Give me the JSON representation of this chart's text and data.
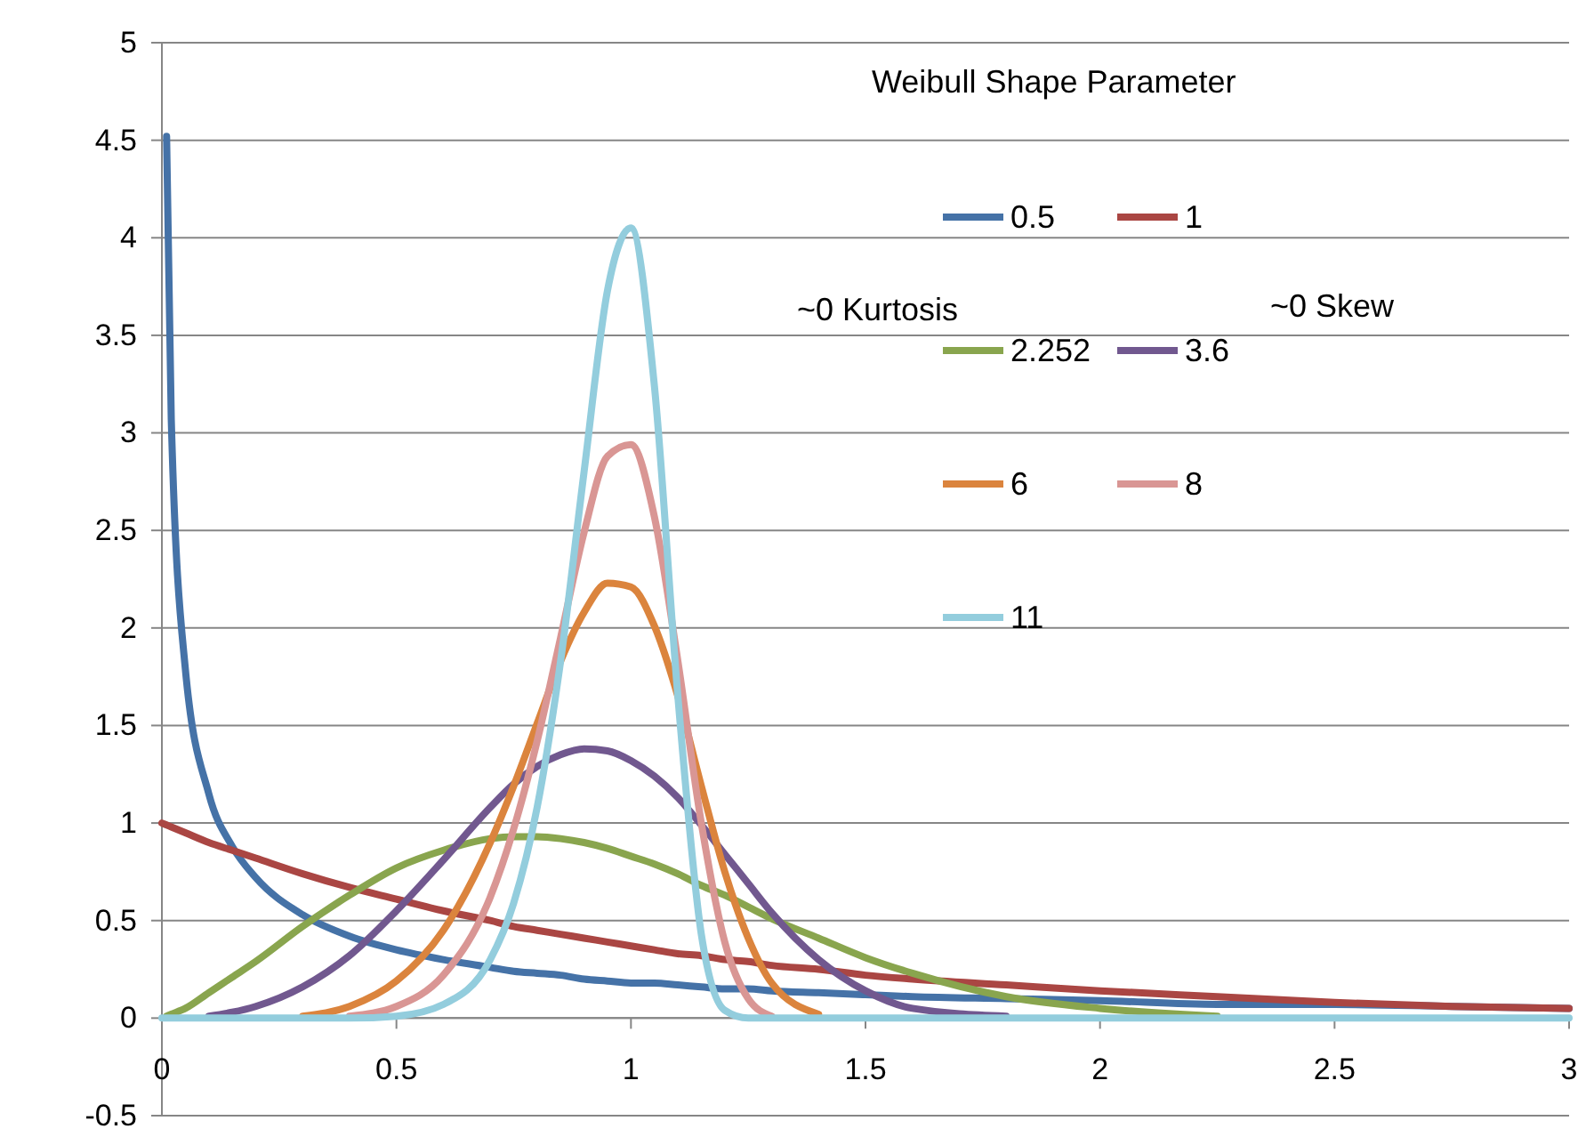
{
  "chart_data": {
    "type": "line",
    "legend_title": "Weibull Shape Parameter",
    "annotations": [
      "~0 Kurtosis",
      "~0 Skew"
    ],
    "x": [
      0,
      0.01,
      0.02,
      0.05,
      0.1,
      0.15,
      0.2,
      0.3,
      0.4,
      0.5,
      0.6,
      0.7,
      0.75,
      0.8,
      0.85,
      0.9,
      0.95,
      1,
      1.05,
      1.1,
      1.15,
      1.2,
      1.25,
      1.3,
      1.4,
      1.5,
      1.6,
      1.8,
      2,
      2.25,
      2.5,
      2.75,
      3
    ],
    "xlim": [
      0,
      3
    ],
    "xticks": [
      0,
      0.5,
      1,
      1.5,
      2,
      2.5,
      3
    ],
    "ylim": [
      -0.5,
      5
    ],
    "yticks": [
      -0.5,
      0,
      0.5,
      1,
      1.5,
      2,
      2.5,
      3,
      3.5,
      4,
      4.5,
      5
    ],
    "grid": "y",
    "legend": "top right",
    "line_style": "solid",
    "marker": "none",
    "series": [
      {
        "name": "0.5",
        "color": "#4572a7",
        "values": [
          null,
          4.52,
          3.07,
          1.79,
          1.15,
          0.88,
          0.72,
          0.53,
          0.42,
          0.35,
          0.3,
          0.26,
          0.24,
          0.23,
          0.22,
          0.2,
          0.19,
          0.18,
          0.18,
          0.17,
          0.16,
          0.15,
          0.15,
          0.14,
          0.13,
          0.12,
          0.11,
          0.1,
          0.09,
          0.07,
          0.07,
          0.06,
          0.05
        ]
      },
      {
        "name": "1",
        "color": "#aa4643",
        "values": [
          1,
          0.99,
          0.98,
          0.95,
          0.9,
          0.86,
          0.82,
          0.74,
          0.67,
          0.61,
          0.55,
          0.5,
          0.47,
          0.45,
          0.43,
          0.41,
          0.39,
          0.37,
          0.35,
          0.33,
          0.32,
          0.3,
          0.29,
          0.27,
          0.25,
          0.22,
          0.2,
          0.17,
          0.14,
          0.11,
          0.08,
          0.06,
          0.05
        ]
      },
      {
        "name": "2.252",
        "color": "#89a54e",
        "values": [
          null,
          0.01,
          0.02,
          0.05,
          0.13,
          0.21,
          0.29,
          0.47,
          0.63,
          0.77,
          0.86,
          0.92,
          0.93,
          0.93,
          0.92,
          0.9,
          0.87,
          0.83,
          0.79,
          0.74,
          0.68,
          0.63,
          0.57,
          0.51,
          0.41,
          0.31,
          0.23,
          0.11,
          0.05,
          0.01,
          null,
          null,
          null
        ]
      },
      {
        "name": "3.6",
        "color": "#71588f",
        "values": [
          null,
          null,
          null,
          null,
          0.01,
          0.03,
          0.06,
          0.16,
          0.32,
          0.55,
          0.81,
          1.08,
          1.2,
          1.29,
          1.35,
          1.38,
          1.37,
          1.32,
          1.24,
          1.13,
          0.99,
          0.84,
          0.69,
          0.54,
          0.3,
          0.14,
          0.05,
          0.01,
          null,
          null,
          null,
          null,
          null
        ]
      },
      {
        "name": "6",
        "color": "#db843d",
        "values": [
          null,
          null,
          null,
          null,
          null,
          null,
          null,
          0.01,
          0.06,
          0.19,
          0.45,
          0.9,
          1.19,
          1.51,
          1.83,
          2.08,
          2.23,
          2.21,
          2.01,
          1.65,
          1.19,
          0.75,
          0.41,
          0.18,
          0.02,
          null,
          null,
          null,
          null,
          null,
          null,
          null,
          null
        ]
      },
      {
        "name": "8",
        "color": "#d99694",
        "values": [
          null,
          null,
          null,
          null,
          null,
          null,
          null,
          null,
          0.01,
          0.06,
          0.22,
          0.62,
          0.97,
          1.42,
          1.95,
          2.49,
          2.88,
          2.94,
          2.57,
          1.83,
          1,
          0.39,
          0.1,
          0.01,
          null,
          null,
          null,
          null,
          null,
          null,
          null,
          null,
          null
        ]
      },
      {
        "name": "11",
        "color": "#93cddd",
        "values": [
          0,
          0,
          0,
          0,
          0,
          0,
          0,
          0,
          0,
          0.01,
          0.07,
          0.3,
          0.59,
          1.08,
          1.83,
          2.8,
          3.73,
          4.05,
          3.24,
          1.65,
          0.43,
          0.04,
          0,
          0,
          0,
          0,
          0,
          0,
          0,
          0,
          0,
          0,
          0
        ]
      }
    ]
  }
}
